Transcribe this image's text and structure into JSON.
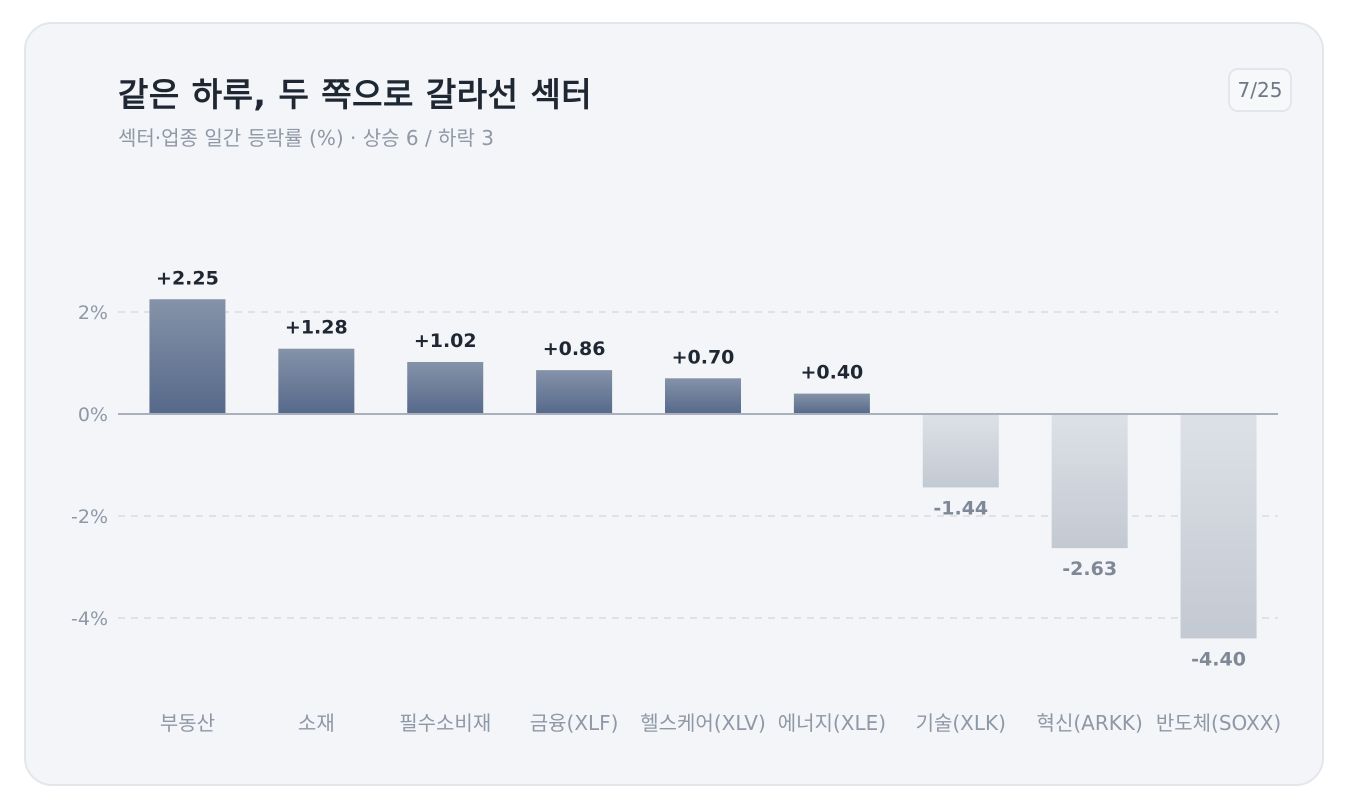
{
  "card": {
    "title": "같은 하루, 두 쪽으로 갈라선 섹터",
    "subtitle": "섹터·업종 일간 등락률 (%) · 상승 6 / 하락 3",
    "page_indicator": "7/25"
  },
  "chart_data": {
    "type": "bar",
    "title": "같은 하루, 두 쪽으로 갈라선 섹터",
    "subtitle": "섹터·업종 일간 등락률 (%) · 상승 6 / 하락 3",
    "xlabel": "",
    "ylabel": "",
    "categories": [
      "부동산",
      "소재",
      "필수소비재",
      "금융(XLF)",
      "헬스케어(XLV)",
      "에너지(XLE)",
      "기술(XLK)",
      "혁신(ARKK)",
      "반도체(SOXX)"
    ],
    "values": [
      2.25,
      1.28,
      1.02,
      0.86,
      0.7,
      0.4,
      -1.44,
      -2.63,
      -4.4
    ],
    "value_labels": [
      "+2.25",
      "+1.28",
      "+1.02",
      "+0.86",
      "+0.70",
      "+0.40",
      "-1.44",
      "-2.63",
      "-4.40"
    ],
    "yticks": [
      2,
      0,
      -2,
      -4
    ],
    "ytick_labels": [
      "2%",
      "0%",
      "-2%",
      "-4%"
    ],
    "ylim": [
      -5.3,
      4
    ],
    "grid": true,
    "legend": "none",
    "colors": {
      "positive_top": "#8593a9",
      "positive_bottom": "#56698a",
      "negative_top": "#dde1e7",
      "negative_bottom": "#c3c9d2",
      "positive_label": "#1f2733",
      "negative_label": "#7f8896",
      "zero_line": "#a9b0bc",
      "grid": "#d8dce2"
    }
  }
}
